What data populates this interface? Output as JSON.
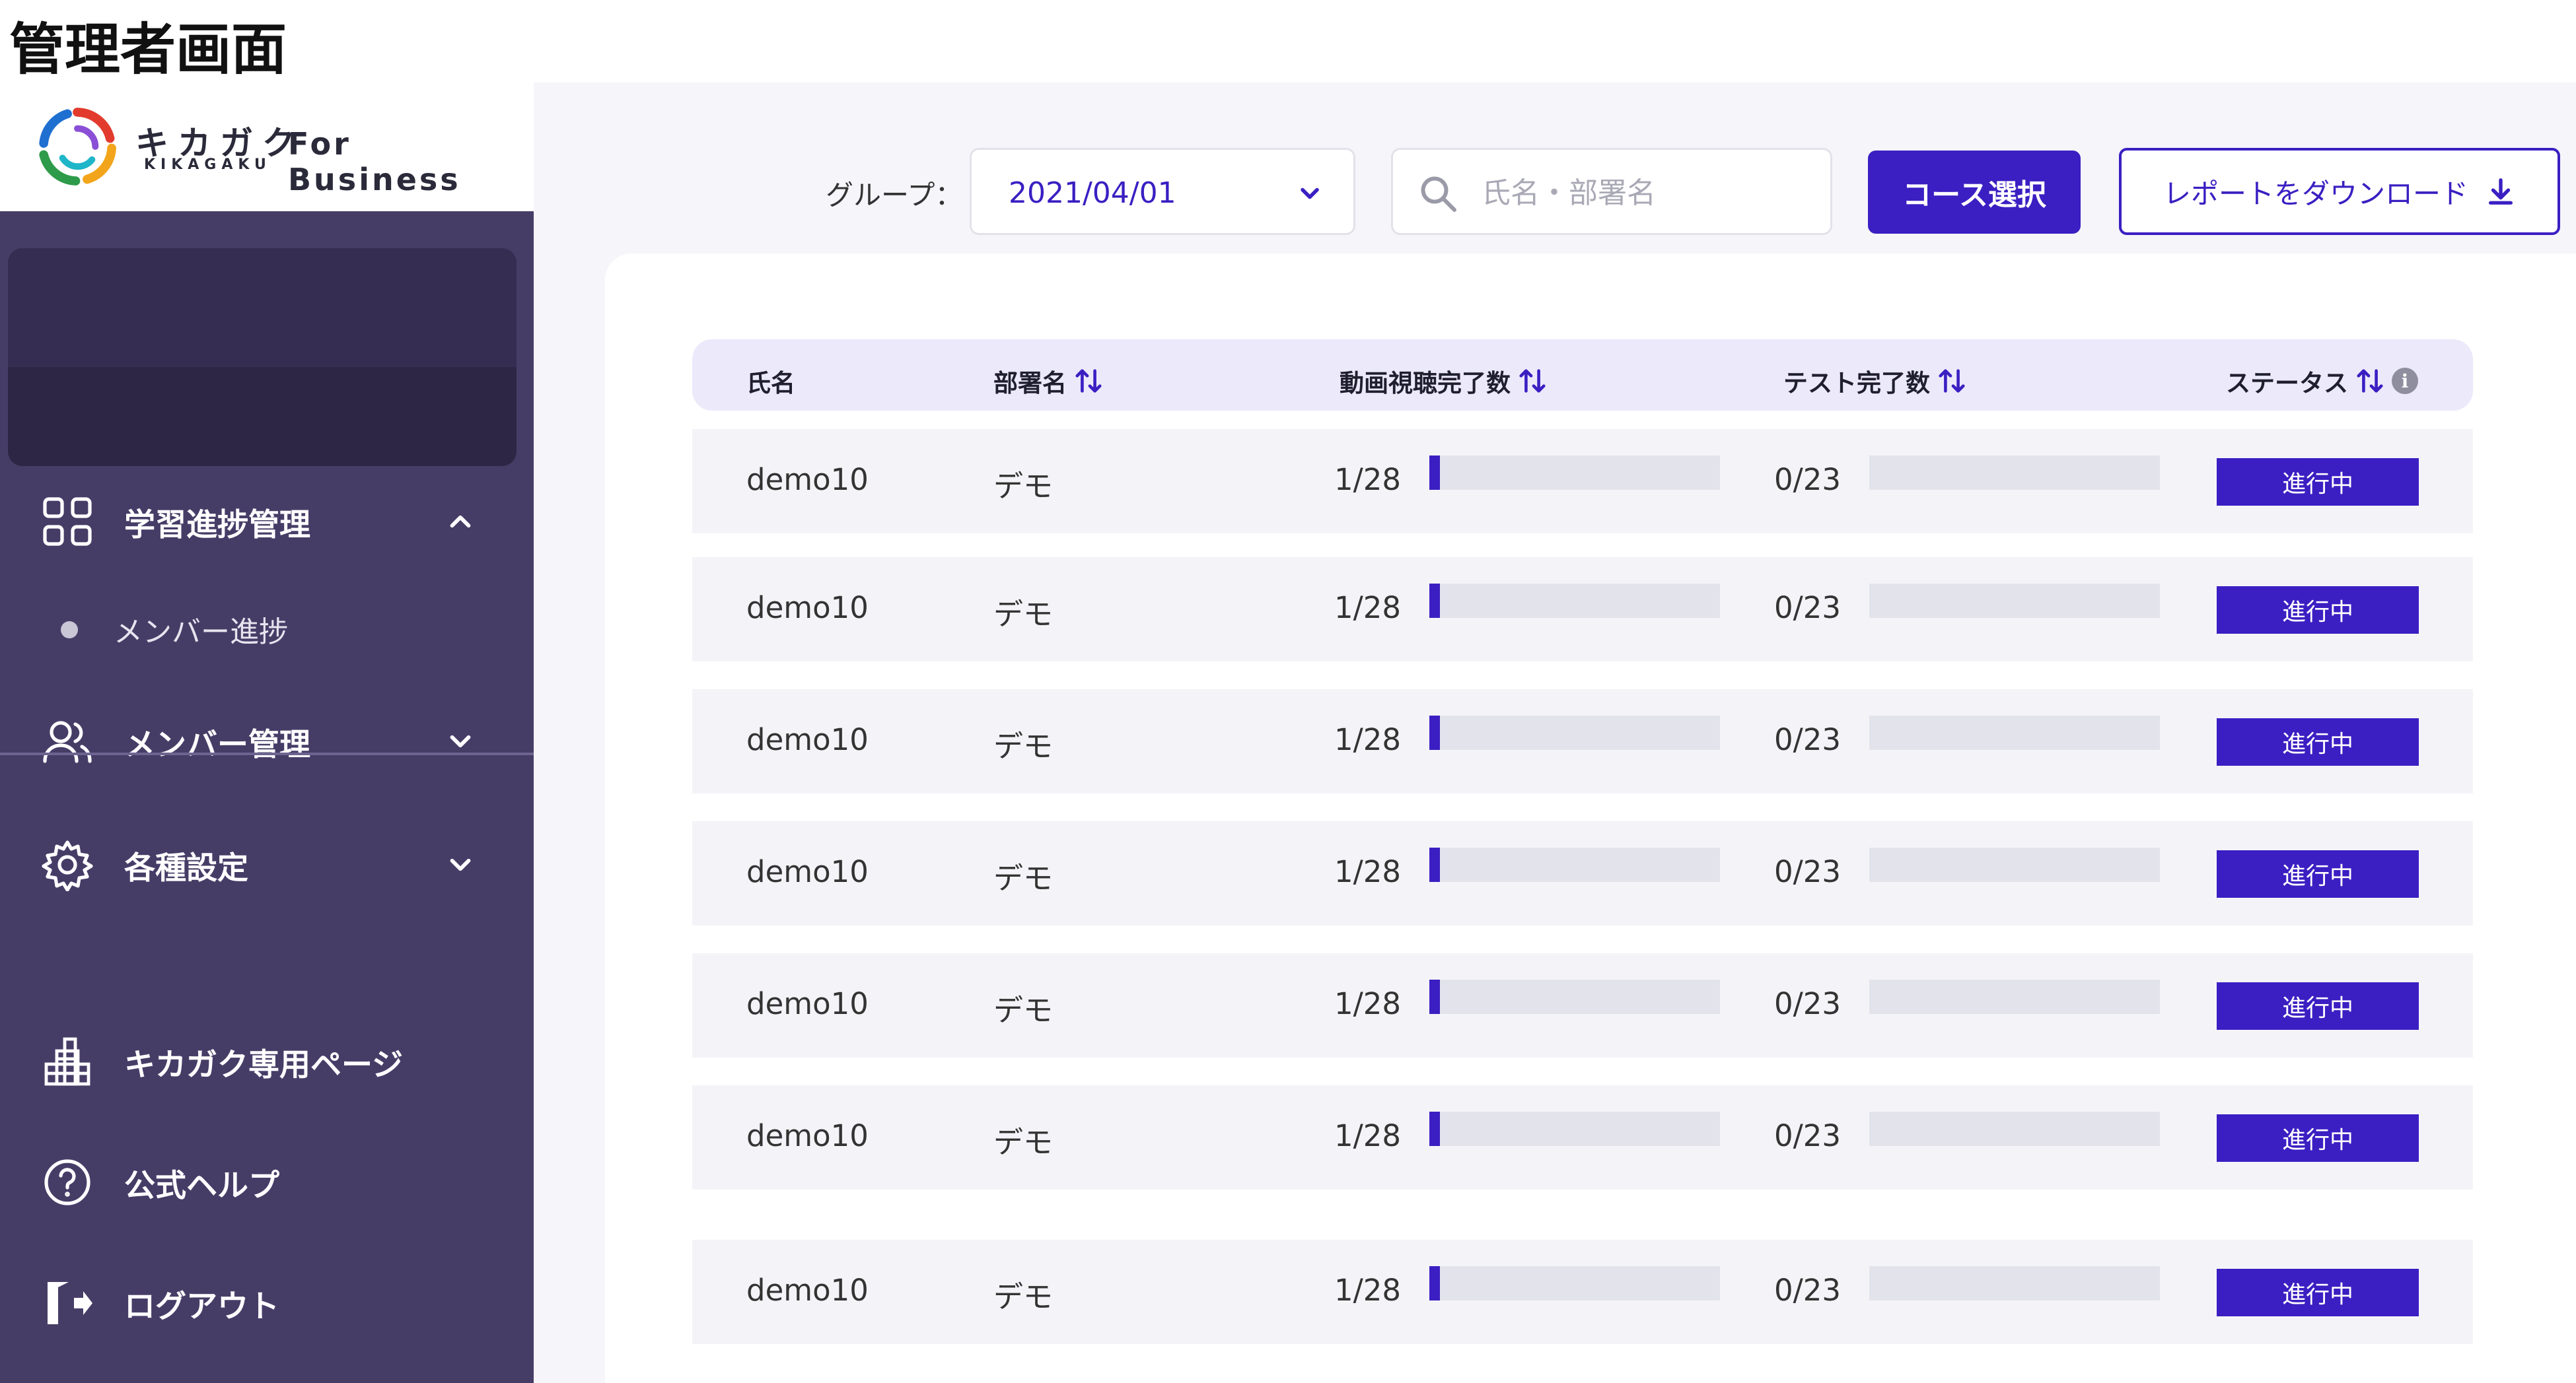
{
  "page_title": "管理者画面",
  "brand": {
    "logo_jp": "キカガク",
    "logo_en": "KIKAGAKU",
    "suffix": "For Business"
  },
  "sidebar": {
    "learning": {
      "label": "学習進捗管理",
      "sub_items": [
        {
          "label": "メンバー進捗"
        }
      ]
    },
    "member_management": {
      "label": "メンバー管理"
    },
    "settings": {
      "label": "各種設定"
    },
    "links": [
      {
        "label": "キカガク専用ページ",
        "icon": "building-icon"
      },
      {
        "label": "公式ヘルプ",
        "icon": "help-circle-icon"
      },
      {
        "label": "ログアウト",
        "icon": "logout-icon"
      }
    ]
  },
  "toolbar": {
    "group_label": "グループ：",
    "group_value": "2021/04/01",
    "search_placeholder": "氏名・部署名",
    "course_button": "コース選択",
    "report_button": "レポートをダウンロード"
  },
  "table": {
    "columns": {
      "name": "氏名",
      "department": "部署名",
      "video": "動画視聴完了数",
      "test": "テスト完了数",
      "status": "ステータス"
    },
    "info_icon_text": "i",
    "rows": [
      {
        "name": "demo10",
        "department": "デモ",
        "video": "1/28",
        "video_progress": 0.036,
        "test": "0/23",
        "test_progress": 0,
        "status": "進行中"
      },
      {
        "name": "demo10",
        "department": "デモ",
        "video": "1/28",
        "video_progress": 0.036,
        "test": "0/23",
        "test_progress": 0,
        "status": "進行中"
      },
      {
        "name": "demo10",
        "department": "デモ",
        "video": "1/28",
        "video_progress": 0.036,
        "test": "0/23",
        "test_progress": 0,
        "status": "進行中"
      },
      {
        "name": "demo10",
        "department": "デモ",
        "video": "1/28",
        "video_progress": 0.036,
        "test": "0/23",
        "test_progress": 0,
        "status": "進行中"
      },
      {
        "name": "demo10",
        "department": "デモ",
        "video": "1/28",
        "video_progress": 0.036,
        "test": "0/23",
        "test_progress": 0,
        "status": "進行中"
      },
      {
        "name": "demo10",
        "department": "デモ",
        "video": "1/28",
        "video_progress": 0.036,
        "test": "0/23",
        "test_progress": 0,
        "status": "進行中"
      },
      {
        "name": "demo10",
        "department": "デモ",
        "video": "1/28",
        "video_progress": 0.036,
        "test": "0/23",
        "test_progress": 0,
        "status": "進行中"
      }
    ]
  },
  "colors": {
    "accent": "#3b1fc2",
    "sidebar": "#463d67",
    "header_row": "#ece9fb"
  }
}
